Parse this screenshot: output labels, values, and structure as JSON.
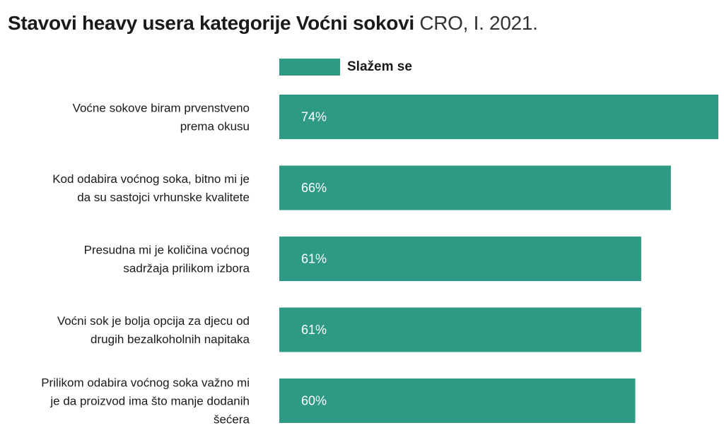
{
  "title_bold": "Stavovi heavy usera kategorije Voćni sokovi",
  "title_light": "CRO, I. 2021.",
  "legend": {
    "label": "Slažem se",
    "color": "#2e9a85"
  },
  "chart_data": {
    "type": "bar",
    "orientation": "horizontal",
    "title": "Stavovi heavy usera kategorije Voćni sokovi CRO, I. 2021.",
    "categories": [
      [
        "Voćne sokove biram prvenstveno",
        "prema okusu"
      ],
      [
        "Kod odabira voćnog soka, bitno mi je",
        "da su sastojci vrhunske kvalitete"
      ],
      [
        "Presudna mi je količina voćnog",
        "sadržaja prilikom izbora"
      ],
      [
        "Voćni sok je bolja opcija za djecu od",
        "drugih bezalkoholnih napitaka"
      ],
      [
        "Prilikom odabira voćnog soka važno mi",
        "je da proizvod  ima što manje dodanih",
        "šećera"
      ]
    ],
    "series": [
      {
        "name": "Slažem se",
        "values": [
          74,
          66,
          61,
          61,
          60
        ],
        "labels": [
          "74%",
          "66%",
          "61%",
          "61%",
          "60%"
        ],
        "color": "#2e9a85"
      }
    ],
    "xlim": [
      0,
      74
    ],
    "grid": false,
    "legend_position": "top"
  }
}
